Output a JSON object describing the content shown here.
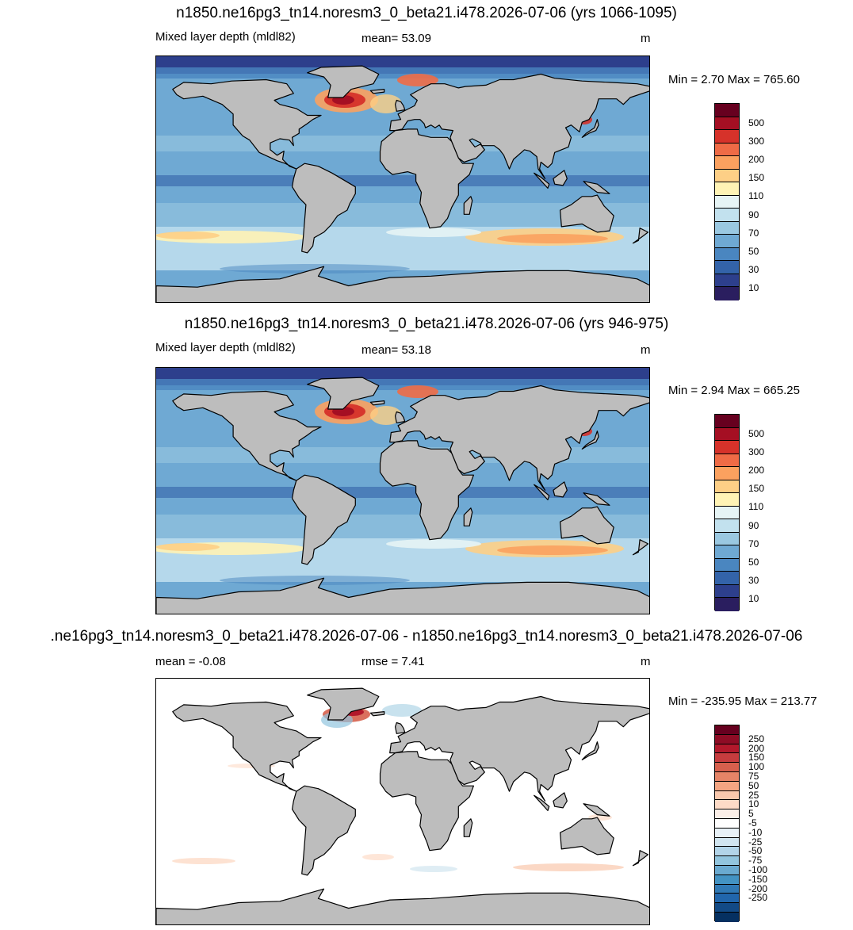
{
  "panels": [
    {
      "title": "n1850.ne16pg3_tn14.noresm3_0_beta21.i478.2026-07-06 (yrs 1066-1095)",
      "left_label": "Mixed layer depth (mldl82)",
      "center_label": "mean=  53.09",
      "units": "m",
      "minmax": "Min =   2.70 Max = 765.60",
      "colorbar_labels": [
        "500",
        "300",
        "200",
        "150",
        "110",
        "90",
        "70",
        "50",
        "30",
        "10"
      ],
      "colors": [
        "#67001f",
        "#a50f23",
        "#d6322a",
        "#ef6b46",
        "#fba15f",
        "#fdcf86",
        "#fff3b5",
        "#e6f4f5",
        "#c2e1ee",
        "#9ac8e1",
        "#6fa9d3",
        "#4a86c0",
        "#3363a9",
        "#2d3f8c",
        "#2a1e5f"
      ]
    },
    {
      "title": "n1850.ne16pg3_tn14.noresm3_0_beta21.i478.2026-07-06 (yrs 946-975)",
      "left_label": "Mixed layer depth (mldl82)",
      "center_label": "mean=  53.18",
      "units": "m",
      "minmax": "Min =   2.94 Max = 665.25",
      "colorbar_labels": [
        "500",
        "300",
        "200",
        "150",
        "110",
        "90",
        "70",
        "50",
        "30",
        "10"
      ],
      "colors": [
        "#67001f",
        "#a50f23",
        "#d6322a",
        "#ef6b46",
        "#fba15f",
        "#fdcf86",
        "#fff3b5",
        "#e6f4f5",
        "#c2e1ee",
        "#9ac8e1",
        "#6fa9d3",
        "#4a86c0",
        "#3363a9",
        "#2d3f8c",
        "#2a1e5f"
      ]
    },
    {
      "title": ".ne16pg3_tn14.noresm3_0_beta21.i478.2026-07-06 - n1850.ne16pg3_tn14.noresm3_0_beta21.i478.2026-07-06",
      "left_label": "mean =  -0.08",
      "center_label": "rmse =   7.41",
      "units": "m",
      "minmax": "Min = -235.95 Max = 213.77",
      "colorbar_labels": [
        "250",
        "200",
        "150",
        "100",
        "75",
        "50",
        "25",
        "10",
        "5",
        "-5",
        "-10",
        "-25",
        "-50",
        "-75",
        "-100",
        "-150",
        "-200",
        "-250"
      ],
      "colors": [
        "#67001f",
        "#8e0c25",
        "#b2182b",
        "#c63c3e",
        "#d6604d",
        "#e58467",
        "#f4a582",
        "#f9c8ad",
        "#fddbc7",
        "#fbefe8",
        "#ffffff",
        "#e8f1f7",
        "#d1e5f0",
        "#b2d4e8",
        "#92c5de",
        "#6aaad0",
        "#4393c3",
        "#3079b5",
        "#2166ac",
        "#124a86",
        "#053061"
      ]
    }
  ]
}
